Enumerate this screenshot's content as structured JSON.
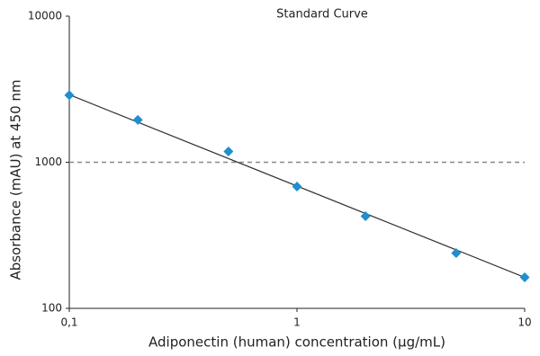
{
  "chart_data": {
    "type": "scatter",
    "title": "Standard Curve",
    "x_label": "Adiponectin (human) concentration (µg/mL)",
    "y_label": "Absorbance (mAU) at 450 nm",
    "x_scale": "log",
    "y_scale": "log",
    "xlim": [
      0.1,
      10
    ],
    "ylim": [
      100,
      10000
    ],
    "xticks": [
      {
        "value": 0.1,
        "label": "0,1"
      },
      1,
      10
    ],
    "yticks": [
      100,
      1000,
      10000
    ],
    "series": [
      {
        "color": "#1f8fce",
        "x": [
          0.1,
          0.2,
          0.5,
          1,
          2,
          5,
          10
        ],
        "values": [
          2880,
          1950,
          1185,
          682,
          427,
          239,
          163
        ]
      }
    ],
    "trend_line": {
      "color": "#333333",
      "x": [
        0.1,
        10
      ],
      "values": [
        2900,
        163
      ]
    },
    "reference_line": {
      "value": 1000,
      "color": "#888888"
    }
  }
}
